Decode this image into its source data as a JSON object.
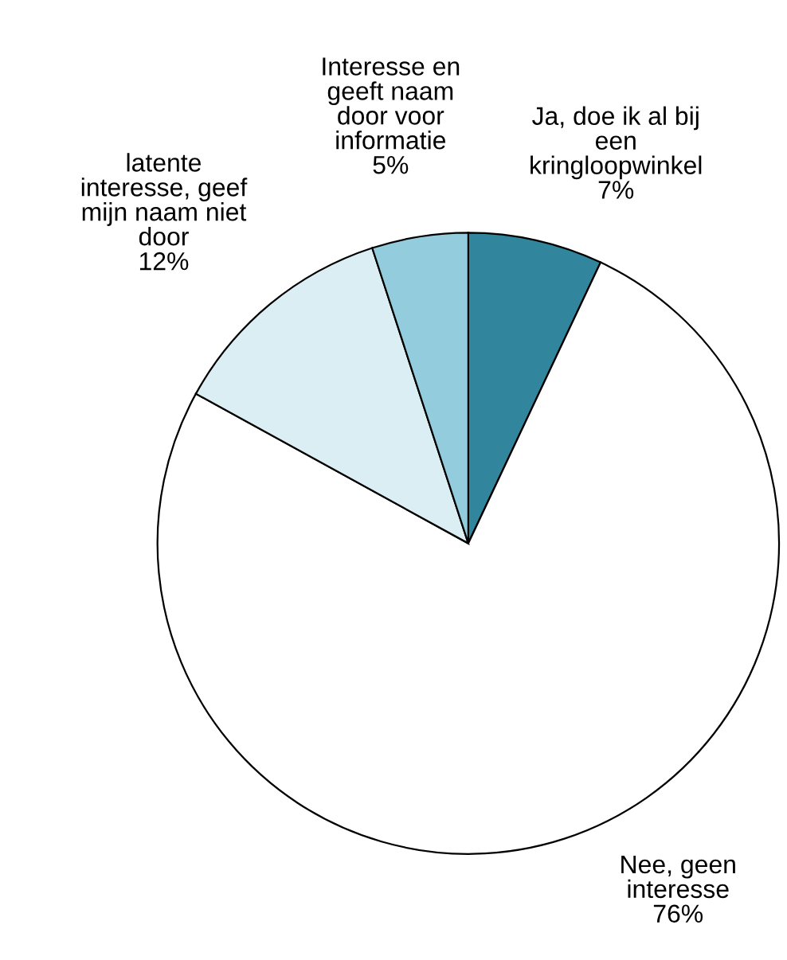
{
  "chart_data": {
    "type": "pie",
    "categories": [
      "Ja, doe ik al bij een kringloopwinkel",
      "Nee, geen interesse",
      "latente interesse, geef mijn naam niet door",
      "Interesse en geeft naam door voor informatie"
    ],
    "values": [
      7,
      76,
      12,
      5
    ],
    "colors": [
      "#31859c",
      "#ffffff",
      "#dbeef4",
      "#93cddd"
    ],
    "value_labels": [
      "7%",
      "76%",
      "12%",
      "5%"
    ]
  }
}
